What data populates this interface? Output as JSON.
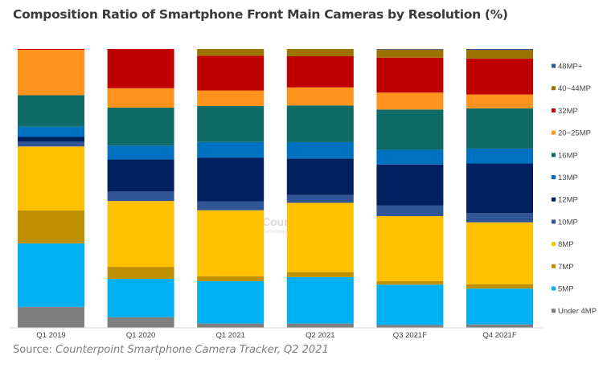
{
  "chart_data": {
    "type": "bar",
    "stacked": "percent",
    "title": "Composition Ratio of Smartphone Front Main Cameras by Resolution (%)",
    "source_prefix": "Source: ",
    "source_text": "Counterpoint Smartphone Camera Tracker, Q2 2021",
    "watermark": "Counterpoint Technology Market Research",
    "categories": [
      "Q1 2019",
      "Q1 2020",
      "Q1 2021",
      "Q2 2021",
      "Q3 2021F",
      "Q4 2021F"
    ],
    "ylim": [
      0,
      100
    ],
    "grid": false,
    "legend_position": "right",
    "series": [
      {
        "name": "Under 4MP",
        "color": "#7f7f7f",
        "values": [
          7.4,
          3.7,
          1.4,
          1.4,
          0.9,
          1.1
        ]
      },
      {
        "name": "5MP",
        "color": "#00b0f0",
        "values": [
          22.8,
          13.8,
          15.2,
          16.7,
          14.5,
          12.9
        ]
      },
      {
        "name": "7MP",
        "color": "#bf9000",
        "values": [
          11.8,
          4.3,
          1.8,
          1.8,
          1.3,
          1.6
        ]
      },
      {
        "name": "8MP",
        "color": "#ffc000",
        "values": [
          23.0,
          23.7,
          23.7,
          24.9,
          23.4,
          22.3
        ]
      },
      {
        "name": "10MP",
        "color": "#2f5597",
        "values": [
          1.7,
          3.4,
          3.2,
          2.8,
          3.9,
          3.3
        ]
      },
      {
        "name": "12MP",
        "color": "#002060",
        "values": [
          1.7,
          11.6,
          15.7,
          13.1,
          14.7,
          17.9
        ]
      },
      {
        "name": "13MP",
        "color": "#0070c0",
        "values": [
          3.7,
          4.9,
          5.6,
          5.9,
          5.3,
          5.4
        ]
      },
      {
        "name": "16MP",
        "color": "#0e6b66",
        "values": [
          11.3,
          13.7,
          12.9,
          13.2,
          14.5,
          14.5
        ]
      },
      {
        "name": "20~25MP",
        "color": "#ff931e",
        "values": [
          16.3,
          7.0,
          5.6,
          6.5,
          6.1,
          5.0
        ]
      },
      {
        "name": "32MP",
        "color": "#c00000",
        "values": [
          0.3,
          14.1,
          12.5,
          11.2,
          12.6,
          13.0
        ]
      },
      {
        "name": "40~44MP",
        "color": "#9c7200",
        "values": [
          0,
          0,
          2.4,
          2.6,
          2.9,
          3.1
        ]
      },
      {
        "name": "48MP+",
        "color": "#2f5597",
        "values": [
          0,
          0,
          0,
          0,
          0.2,
          0.3
        ]
      }
    ]
  }
}
